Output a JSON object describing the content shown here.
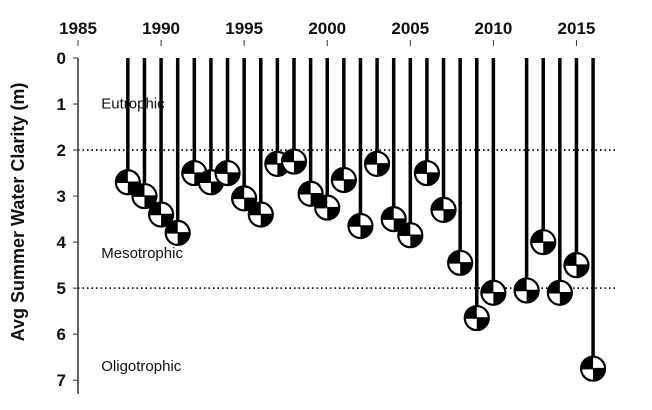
{
  "chart_data": {
    "type": "scatter",
    "ylabel": "Avg Summer Water Clarity (m)",
    "x_axis_position": "top",
    "y_inverted": true,
    "xlim": [
      1985,
      2017.5
    ],
    "ylim": [
      0,
      7.3
    ],
    "x_ticks": [
      1985,
      1990,
      1995,
      2000,
      2005,
      2010,
      2015
    ],
    "y_ticks": [
      0,
      1,
      2,
      3,
      4,
      5,
      6,
      7
    ],
    "reference_lines": [
      2,
      5
    ],
    "zones": [
      {
        "label": "Eutrophic",
        "y": 1.1,
        "x": 1986.4
      },
      {
        "label": "Mesotrophic",
        "y": 4.35,
        "x": 1986.4
      },
      {
        "label": "Oligotrophic",
        "y": 6.8,
        "x": 1986.4
      }
    ],
    "points": [
      {
        "x": 1988,
        "y": 2.7
      },
      {
        "x": 1989,
        "y": 3.0
      },
      {
        "x": 1990,
        "y": 3.4
      },
      {
        "x": 1991,
        "y": 3.8
      },
      {
        "x": 1992,
        "y": 2.5
      },
      {
        "x": 1993,
        "y": 2.7
      },
      {
        "x": 1994,
        "y": 2.5
      },
      {
        "x": 1995,
        "y": 3.05
      },
      {
        "x": 1996,
        "y": 3.4
      },
      {
        "x": 1997,
        "y": 2.3
      },
      {
        "x": 1998,
        "y": 2.25
      },
      {
        "x": 1999,
        "y": 2.95
      },
      {
        "x": 2000,
        "y": 3.25
      },
      {
        "x": 2001,
        "y": 2.65
      },
      {
        "x": 2002,
        "y": 3.65
      },
      {
        "x": 2003,
        "y": 2.3
      },
      {
        "x": 2004,
        "y": 3.5
      },
      {
        "x": 2005,
        "y": 3.85
      },
      {
        "x": 2006,
        "y": 2.5
      },
      {
        "x": 2007,
        "y": 3.3
      },
      {
        "x": 2008,
        "y": 4.45
      },
      {
        "x": 2009,
        "y": 5.65
      },
      {
        "x": 2010,
        "y": 5.1
      },
      {
        "x": 2012,
        "y": 5.05
      },
      {
        "x": 2013,
        "y": 4.0
      },
      {
        "x": 2014,
        "y": 5.1
      },
      {
        "x": 2015,
        "y": 4.5
      },
      {
        "x": 2016,
        "y": 6.75
      }
    ],
    "marker": "secchi-disk",
    "grid": false,
    "legend": "none"
  }
}
